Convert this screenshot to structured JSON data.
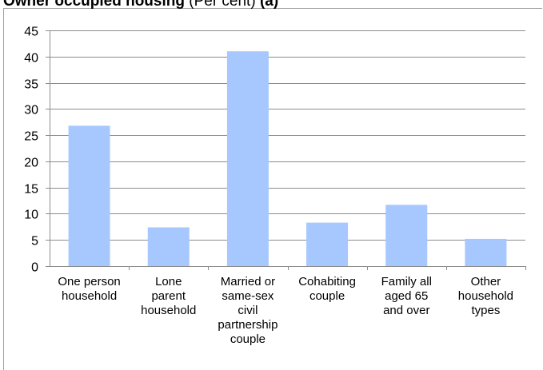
{
  "title": {
    "bold": "Owner occupied housing",
    "normal": " (Per cent) ",
    "suffix": "(a)"
  },
  "chart_data": {
    "type": "bar",
    "categories": [
      [
        "One person",
        "household"
      ],
      [
        "Lone",
        "parent",
        "household"
      ],
      [
        "Married or",
        "same-sex",
        "civil",
        "partnership",
        "couple"
      ],
      [
        "Cohabiting",
        "couple"
      ],
      [
        "Family all",
        "aged 65",
        "and over"
      ],
      [
        "Other",
        "household",
        "types"
      ]
    ],
    "values": [
      26.8,
      7.4,
      41.0,
      8.3,
      11.7,
      5.2
    ],
    "yticks": [
      "0",
      "5",
      "10",
      "15",
      "20",
      "25",
      "30",
      "35",
      "40",
      "45"
    ],
    "ylim": [
      0,
      45
    ],
    "grid": true,
    "bar_color": "#a6c8ff",
    "grid_color": "#8c8c8c"
  }
}
